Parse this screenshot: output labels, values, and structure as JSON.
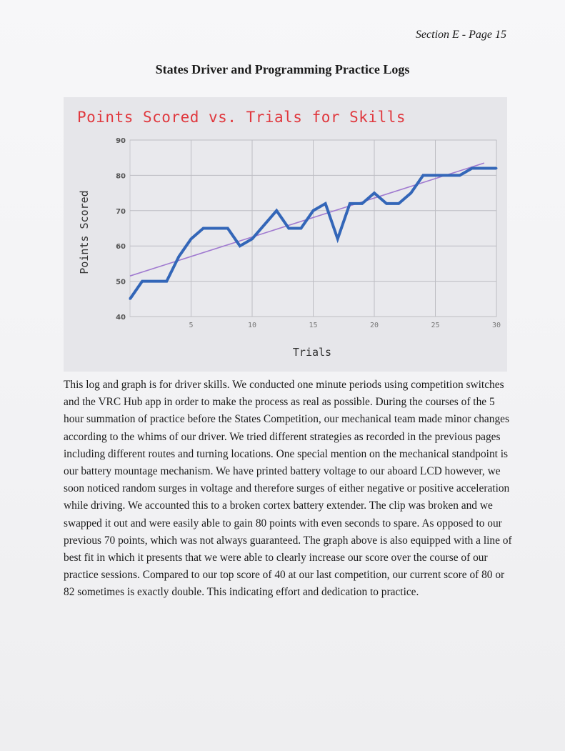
{
  "header": "Section E - Page 15",
  "title": "States Driver and Programming Practice Logs",
  "colors": {
    "chart_title": "#e0383e",
    "series_line": "#3366b8",
    "trend_line": "#a07ad0",
    "grid": "#bdbdc3",
    "chart_bg": "#e6e6ea"
  },
  "chart_data": {
    "type": "line",
    "title": "Points Scored vs. Trials for Skills",
    "xlabel": "Trials",
    "ylabel": "Points Scored",
    "xlim": [
      0,
      30
    ],
    "ylim": [
      40,
      90
    ],
    "x_ticks": [
      5,
      10,
      15,
      20,
      25,
      30
    ],
    "y_ticks": [
      40,
      50,
      60,
      70,
      80,
      90
    ],
    "grid": true,
    "series": [
      {
        "x": [
          0,
          1,
          2,
          3,
          4,
          5,
          6,
          7,
          8,
          9,
          10,
          11,
          12,
          13,
          14,
          15,
          16,
          17,
          18,
          19,
          20,
          21,
          22,
          23,
          24,
          25,
          26,
          27,
          28,
          29,
          30
        ],
        "values": [
          45,
          50,
          50,
          50,
          57,
          62,
          65,
          65,
          65,
          60,
          62,
          66,
          70,
          65,
          65,
          70,
          72,
          62,
          72,
          72,
          75,
          72,
          72,
          75,
          80,
          80,
          80,
          80,
          82,
          82,
          82
        ]
      }
    ],
    "trendline": {
      "x": [
        0,
        29
      ],
      "y": [
        51.5,
        83.5
      ]
    }
  },
  "body_text": "This log and graph is for driver skills. We conducted one minute periods using competition switches and the VRC Hub app in order to make the process as real as possible. During the courses of the 5 hour summation of practice before the States Competition, our mechanical team made minor changes according to the whims of our driver. We tried different strategies as recorded in the previous pages including different routes and turning locations. One special mention on the mechanical standpoint is our battery mountage mechanism. We have printed battery voltage to our aboard LCD however, we soon noticed random surges in voltage and therefore surges of either negative or positive acceleration while driving. We accounted this to a broken cortex battery extender. The clip was broken and we swapped it out and were easily able to gain 80 points with even seconds to spare. As opposed to our previous 70 points, which was not always guaranteed. The graph above is also equipped with a line of best fit in which it presents that we were able to clearly increase our score over the course of our practice sessions. Compared to our top score of 40 at our last competition, our current score of 80 or 82 sometimes is exactly double. This indicating effort and dedication to practice."
}
